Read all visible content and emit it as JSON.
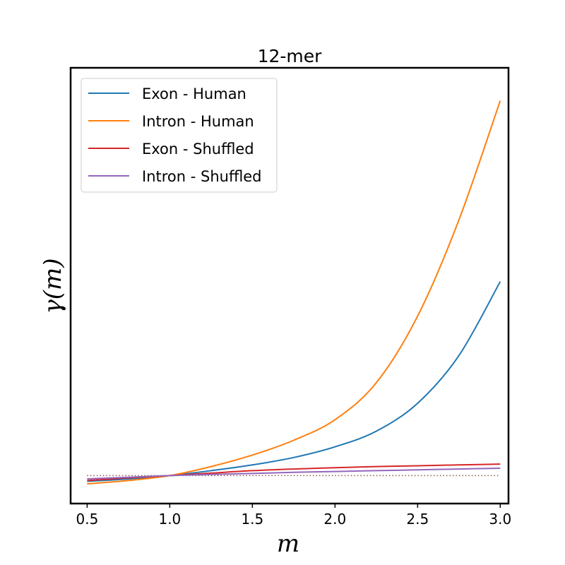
{
  "chart_data": {
    "type": "line",
    "title": "12-mer",
    "xlabel": "m",
    "ylabel": "γ(m)",
    "xlim": [
      0.4,
      3.05
    ],
    "ylim": [
      0.5,
      27.0
    ],
    "xticks": [
      0.5,
      1.0,
      1.5,
      2.0,
      2.5,
      3.0
    ],
    "xtick_labels": [
      "0.5",
      "1.0",
      "1.5",
      "2.0",
      "2.5",
      "3.0"
    ],
    "yticks_shown": false,
    "grid": false,
    "legend_position": "top-left",
    "reference_line": {
      "y": 2.2,
      "style": "dotted",
      "color": "#8c564b"
    },
    "x": [
      0.5,
      0.75,
      1.0,
      1.25,
      1.5,
      1.75,
      2.0,
      2.25,
      2.5,
      2.75,
      3.0
    ],
    "series": [
      {
        "name": "Exon - Human",
        "color": "#1f77b4",
        "values": [
          1.85,
          2.0,
          2.2,
          2.5,
          2.85,
          3.3,
          3.95,
          4.9,
          6.6,
          9.5,
          14.0
        ]
      },
      {
        "name": "Intron - Human",
        "color": "#ff7f0e",
        "values": [
          1.7,
          1.9,
          2.2,
          2.75,
          3.45,
          4.35,
          5.6,
          7.85,
          11.9,
          17.75,
          25.0
        ]
      },
      {
        "name": "Exon - Shuffled",
        "color": "#d62728",
        "values": [
          1.9,
          2.06,
          2.2,
          2.35,
          2.5,
          2.6,
          2.68,
          2.75,
          2.8,
          2.85,
          2.9
        ]
      },
      {
        "name": "Intron - Shuffled",
        "color": "#9467bd",
        "values": [
          2.0,
          2.1,
          2.2,
          2.27,
          2.33,
          2.4,
          2.45,
          2.5,
          2.55,
          2.6,
          2.65
        ]
      }
    ]
  }
}
